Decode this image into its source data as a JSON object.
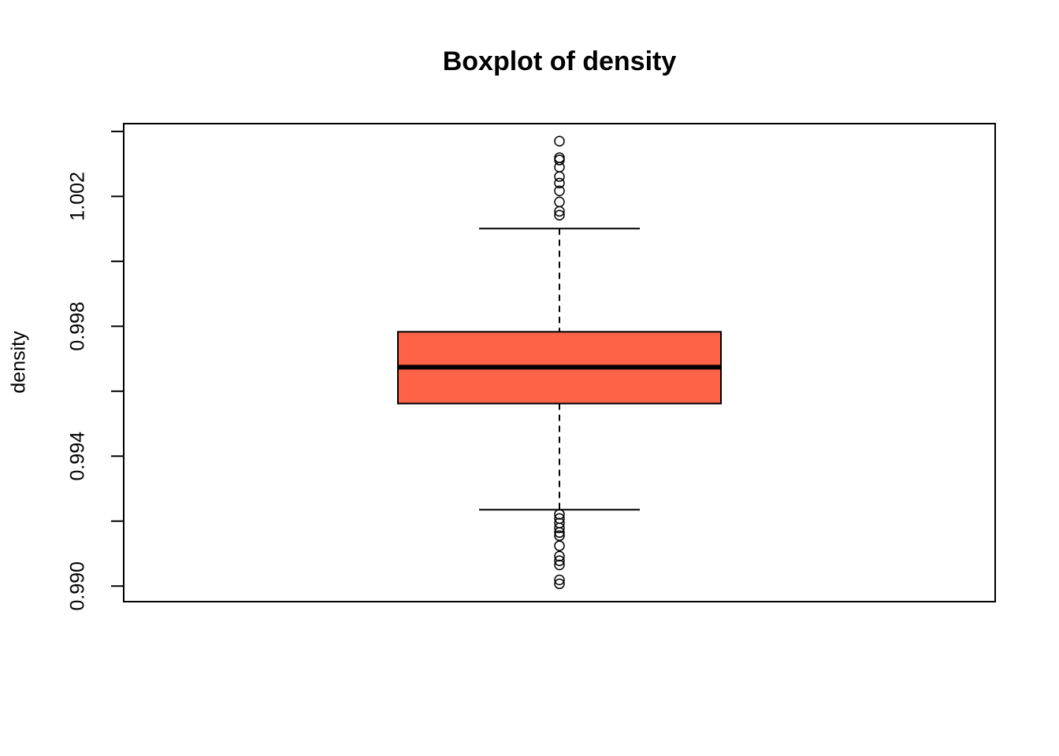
{
  "chart_data": {
    "type": "box",
    "title": "Boxplot of density",
    "y_label": "density",
    "color": "#ff6347",
    "box": {
      "q1": 0.99562,
      "median": 0.99674,
      "q3": 0.99783,
      "whisker_low": 0.99235,
      "whisker_high": 1.00101,
      "outliers": [
        1.0037,
        1.00319,
        1.00312,
        1.0029,
        1.00261,
        1.00241,
        1.00217,
        1.00183,
        1.00154,
        1.00142,
        0.99221,
        0.99208,
        0.99194,
        0.99179,
        0.99165,
        0.99155,
        0.99124,
        0.99092,
        0.99078,
        0.99065,
        0.99019,
        0.99007
      ]
    },
    "ylim": [
      0.98952,
      1.00424
    ],
    "yticks": [
      {
        "value": 0.99,
        "label": "0.990"
      },
      {
        "value": 0.994,
        "label": "0.994"
      },
      {
        "value": 0.998,
        "label": "0.998"
      },
      {
        "value": 1.002,
        "label": "1.002"
      }
    ],
    "yminorticks": [
      0.992,
      0.996,
      1.0,
      1.004
    ]
  }
}
